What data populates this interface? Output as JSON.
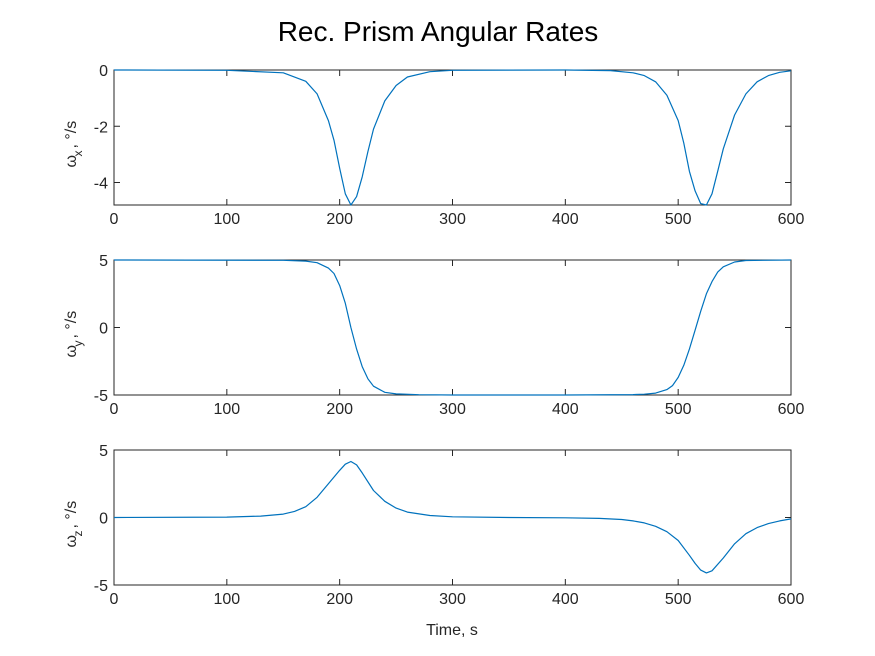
{
  "chart_data": {
    "type": "line",
    "title": "Rec. Prism Angular Rates",
    "xlabel": "Time, s",
    "series_color": "#0072BD",
    "grid": false,
    "subplots": [
      {
        "ylabel": {
          "main": "ω",
          "sub": "x",
          "unit": ", °/s"
        },
        "xlim": [
          0,
          600
        ],
        "ylim": [
          -4.8,
          0
        ],
        "xticks": [
          "0",
          "100",
          "200",
          "300",
          "400",
          "500",
          "600"
        ],
        "yticks": [
          {
            "value": 0,
            "label": "0"
          },
          {
            "value": -2,
            "label": "-2"
          },
          {
            "value": -4,
            "label": "-4"
          }
        ],
        "series": [
          {
            "x": [
              0,
              100,
              150,
              170,
              180,
              190,
              195,
              200,
              205,
              210,
              215,
              220,
              225,
              230,
              240,
              250,
              260,
              280,
              300,
              400,
              440,
              460,
              470,
              480,
              490,
              500,
              505,
              510,
              515,
              520,
              525,
              530,
              535,
              540,
              550,
              560,
              570,
              580,
              590,
              600
            ],
            "y": [
              0,
              -0.01,
              -0.1,
              -0.4,
              -0.85,
              -1.8,
              -2.5,
              -3.5,
              -4.4,
              -4.8,
              -4.5,
              -3.8,
              -2.9,
              -2.1,
              -1.1,
              -0.55,
              -0.25,
              -0.06,
              -0.01,
              0,
              -0.02,
              -0.1,
              -0.2,
              -0.42,
              -0.9,
              -1.8,
              -2.6,
              -3.6,
              -4.3,
              -4.75,
              -4.8,
              -4.4,
              -3.6,
              -2.8,
              -1.6,
              -0.85,
              -0.42,
              -0.2,
              -0.08,
              -0.03
            ]
          }
        ]
      },
      {
        "ylabel": {
          "main": "ω",
          "sub": "y",
          "unit": ", °/s"
        },
        "xlim": [
          0,
          600
        ],
        "ylim": [
          -5,
          5
        ],
        "xticks": [
          "0",
          "100",
          "200",
          "300",
          "400",
          "500",
          "600"
        ],
        "yticks": [
          {
            "value": 5,
            "label": "5"
          },
          {
            "value": 0,
            "label": "0"
          },
          {
            "value": -5,
            "label": "-5"
          }
        ],
        "series": [
          {
            "x": [
              0,
              150,
              170,
              180,
              190,
              195,
              200,
              205,
              210,
              215,
              220,
              225,
              230,
              240,
              250,
              270,
              300,
              400,
              460,
              470,
              480,
              490,
              495,
              500,
              505,
              510,
              515,
              520,
              525,
              530,
              535,
              540,
              550,
              560,
              600
            ],
            "y": [
              5,
              4.98,
              4.92,
              4.8,
              4.4,
              4.0,
              3.1,
              1.8,
              0.0,
              -1.6,
              -2.9,
              -3.8,
              -4.35,
              -4.8,
              -4.92,
              -4.98,
              -5,
              -5,
              -4.97,
              -4.94,
              -4.86,
              -4.6,
              -4.3,
              -3.7,
              -2.8,
              -1.6,
              -0.2,
              1.2,
              2.5,
              3.4,
              4.1,
              4.5,
              4.85,
              4.96,
              5
            ]
          }
        ]
      },
      {
        "ylabel": {
          "main": "ω",
          "sub": "z",
          "unit": ", °/s"
        },
        "xlim": [
          0,
          600
        ],
        "ylim": [
          -5,
          5
        ],
        "xticks": [
          "0",
          "100",
          "200",
          "300",
          "400",
          "500",
          "600"
        ],
        "yticks": [
          {
            "value": 5,
            "label": "5"
          },
          {
            "value": 0,
            "label": "0"
          },
          {
            "value": -5,
            "label": "-5"
          }
        ],
        "series": [
          {
            "x": [
              0,
              100,
              130,
              150,
              160,
              170,
              180,
              190,
              200,
              205,
              210,
              215,
              220,
              230,
              240,
              250,
              260,
              280,
              300,
              350,
              400,
              430,
              450,
              460,
              470,
              480,
              490,
              500,
              510,
              515,
              520,
              525,
              530,
              540,
              550,
              560,
              570,
              580,
              590,
              600
            ],
            "y": [
              0,
              0.03,
              0.1,
              0.25,
              0.45,
              0.8,
              1.5,
              2.5,
              3.5,
              3.95,
              4.15,
              3.9,
              3.3,
              2.0,
              1.2,
              0.7,
              0.4,
              0.15,
              0.05,
              0.0,
              -0.02,
              -0.07,
              -0.15,
              -0.25,
              -0.4,
              -0.65,
              -1.05,
              -1.7,
              -2.8,
              -3.4,
              -3.9,
              -4.1,
              -3.95,
              -3.0,
              -1.95,
              -1.2,
              -0.75,
              -0.45,
              -0.25,
              -0.1
            ]
          }
        ]
      }
    ]
  }
}
